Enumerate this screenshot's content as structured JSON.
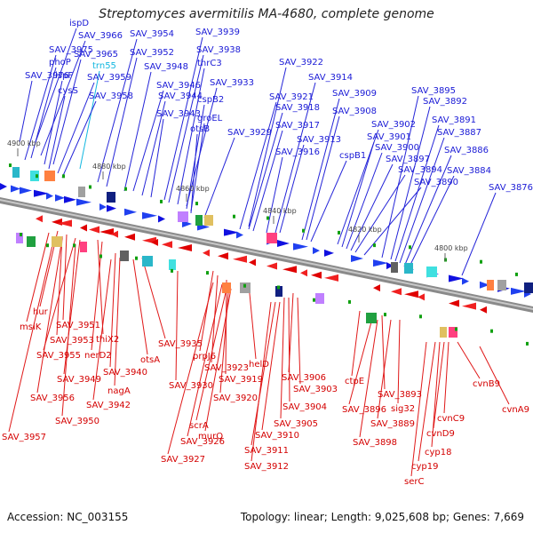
{
  "title": "Streptomyces avermitilis MA-4680, complete genome",
  "footer": {
    "accession": "Accession: NC_003155",
    "summary": "Topology: linear; Length: 9,025,608 bp; Genes: 7,669"
  },
  "kbp_marks": [
    "4900 kbp",
    "4880 kbp",
    "4860 kbp",
    "4840 kbp",
    "4820 kbp",
    "4800 kbp"
  ],
  "top_labels": [
    "ispD",
    "SAV_3975",
    "SAV_3966",
    "phoP",
    "SAV_3965",
    "SAV_3976",
    "ispF",
    "cysS",
    "trn55",
    "SAV_3959",
    "SAV_3958",
    "SAV_3954",
    "SAV_3952",
    "SAV_3948",
    "SAV_3946",
    "SAV_3944",
    "SAV_3943",
    "SAV_3939",
    "SAV_3938",
    "thrC3",
    "SAV_3933",
    "cspB2",
    "groEL",
    "otsB",
    "SAV_3929",
    "SAV_3922",
    "SAV_3921",
    "SAV_3918",
    "SAV_3917",
    "SAV_3916",
    "SAV_3914",
    "SAV_3913",
    "SAV_3909",
    "SAV_3908",
    "cspB1",
    "SAV_3902",
    "SAV_3901",
    "SAV_3900",
    "SAV_3897",
    "SAV_3894",
    "SAV_3890",
    "SAV_3895",
    "SAV_3892",
    "SAV_3891",
    "SAV_3887",
    "SAV_3886",
    "SAV_3884",
    "SAV_3876"
  ],
  "bottom_labels": [
    "hur",
    "msiK",
    "SAV_3951",
    "SAV_3953",
    "thiX2",
    "SAV_3955",
    "nerD2",
    "SAV_3935",
    "otsA",
    "SAV_3949",
    "SAV_3940",
    "nagA",
    "SAV_3956",
    "SAV_3942",
    "SAV_3950",
    "SAV_3957",
    "SAV_3930",
    "prpJ6",
    "SAV_3923",
    "SAV_3919",
    "SAV_3920",
    "helD",
    "murQ",
    "scrA",
    "SAV_3926",
    "SAV_3927",
    "SAV_3906",
    "SAV_3903",
    "SAV_3904",
    "SAV_3905",
    "SAV_3910",
    "SAV_3911",
    "SAV_3912",
    "ctpE",
    "SAV_3893",
    "SAV_3896",
    "sig32",
    "SAV_3889",
    "SAV_3898",
    "cvnB9",
    "cvnA9",
    "cvnC9",
    "cvnD9",
    "cyp18",
    "cyp19",
    "serC"
  ]
}
